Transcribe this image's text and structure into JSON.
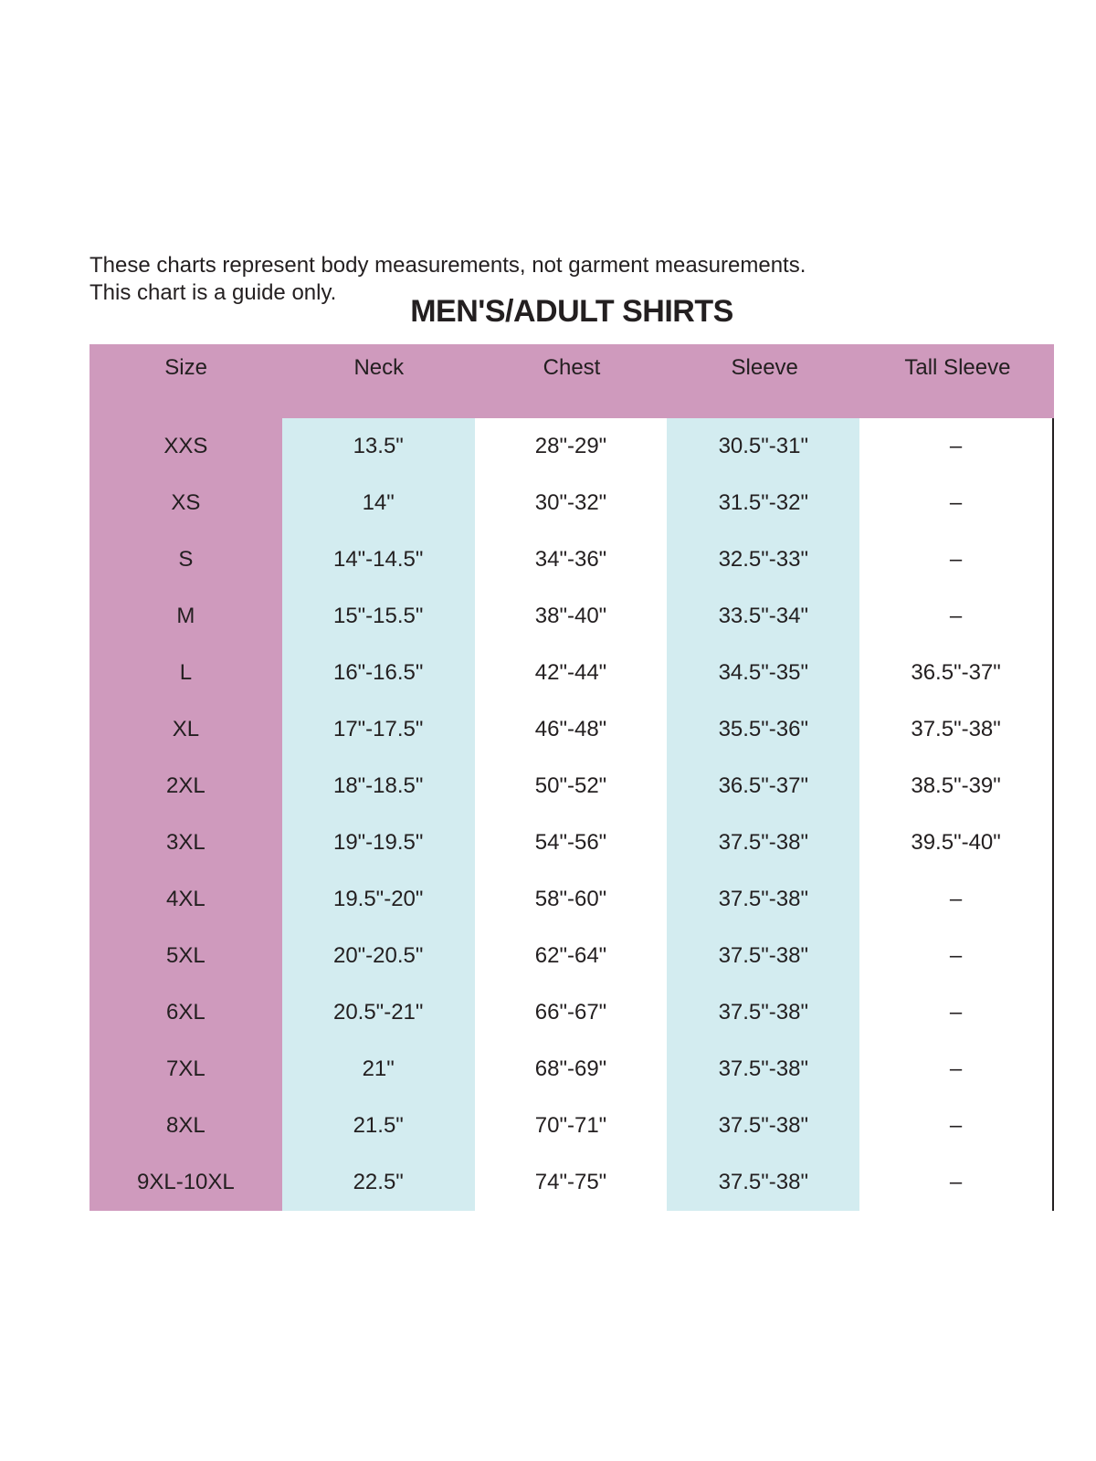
{
  "note": [
    "These charts represent body measurements, not garment measurements.",
    "This chart is a guide only."
  ],
  "title": "MEN'S/ADULT SHIRTS",
  "colors": {
    "header_and_size_column": "#cf9abd",
    "alternate_column": "#d3ecf0"
  },
  "headers": [
    "Size",
    "Neck",
    "Chest",
    "Sleeve",
    "Tall Sleeve"
  ],
  "rows": [
    [
      "XXS",
      "13.5\"",
      "28\"-29\"",
      "30.5\"-31\"",
      "–"
    ],
    [
      "XS",
      "14\"",
      "30\"-32\"",
      "31.5\"-32\"",
      "–"
    ],
    [
      "S",
      "14\"-14.5\"",
      "34\"-36\"",
      "32.5\"-33\"",
      "–"
    ],
    [
      "M",
      "15\"-15.5\"",
      "38\"-40\"",
      "33.5\"-34\"",
      "–"
    ],
    [
      "L",
      "16\"-16.5\"",
      "42\"-44\"",
      "34.5\"-35\"",
      "36.5\"-37\""
    ],
    [
      "XL",
      "17\"-17.5\"",
      "46\"-48\"",
      "35.5\"-36\"",
      "37.5\"-38\""
    ],
    [
      "2XL",
      "18\"-18.5\"",
      "50\"-52\"",
      "36.5\"-37\"",
      "38.5\"-39\""
    ],
    [
      "3XL",
      "19\"-19.5\"",
      "54\"-56\"",
      "37.5\"-38\"",
      "39.5\"-40\""
    ],
    [
      "4XL",
      "19.5\"-20\"",
      "58\"-60\"",
      "37.5\"-38\"",
      "–"
    ],
    [
      "5XL",
      "20\"-20.5\"",
      "62\"-64\"",
      "37.5\"-38\"",
      "–"
    ],
    [
      "6XL",
      "20.5\"-21\"",
      "66\"-67\"",
      "37.5\"-38\"",
      "–"
    ],
    [
      "7XL",
      "21\"",
      "68\"-69\"",
      "37.5\"-38\"",
      "–"
    ],
    [
      "8XL",
      "21.5\"",
      "70\"-71\"",
      "37.5\"-38\"",
      "–"
    ],
    [
      "9XL-10XL",
      "22.5\"",
      "74\"-75\"",
      "37.5\"-38\"",
      "–"
    ]
  ]
}
